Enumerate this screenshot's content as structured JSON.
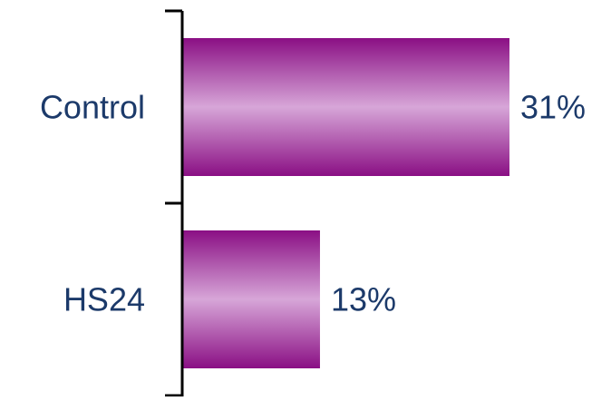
{
  "chart_data": {
    "type": "bar",
    "orientation": "horizontal",
    "categories": [
      "Control",
      "HS24"
    ],
    "values": [
      31,
      13
    ],
    "data_labels": [
      "31%",
      "13%"
    ],
    "xlim": [
      0,
      40
    ],
    "grid": false,
    "colors": {
      "bar_edge": "#8a0f84",
      "bar_center": "#d7a6d8",
      "text": "#1c3a6a",
      "axis": "#000000"
    }
  }
}
